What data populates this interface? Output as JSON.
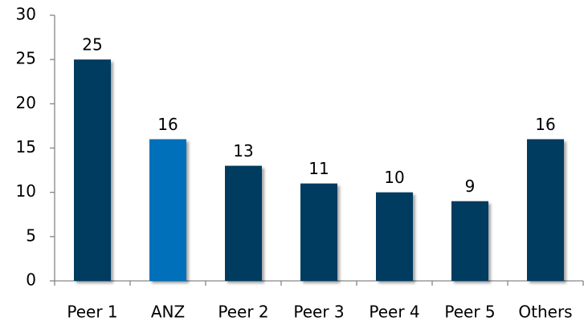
{
  "chart_data": {
    "type": "bar",
    "categories": [
      "Peer 1",
      "ANZ",
      "Peer 2",
      "Peer 3",
      "Peer 4",
      "Peer 5",
      "Others"
    ],
    "values": [
      25,
      16,
      13,
      11,
      10,
      9,
      16
    ],
    "colors": [
      "#003a60",
      "#0070bb",
      "#003a60",
      "#003a60",
      "#003a60",
      "#003a60",
      "#003a60"
    ],
    "ylim": [
      0,
      30
    ],
    "yticks": [
      0,
      5,
      10,
      15,
      20,
      25,
      30
    ],
    "grid": false
  }
}
